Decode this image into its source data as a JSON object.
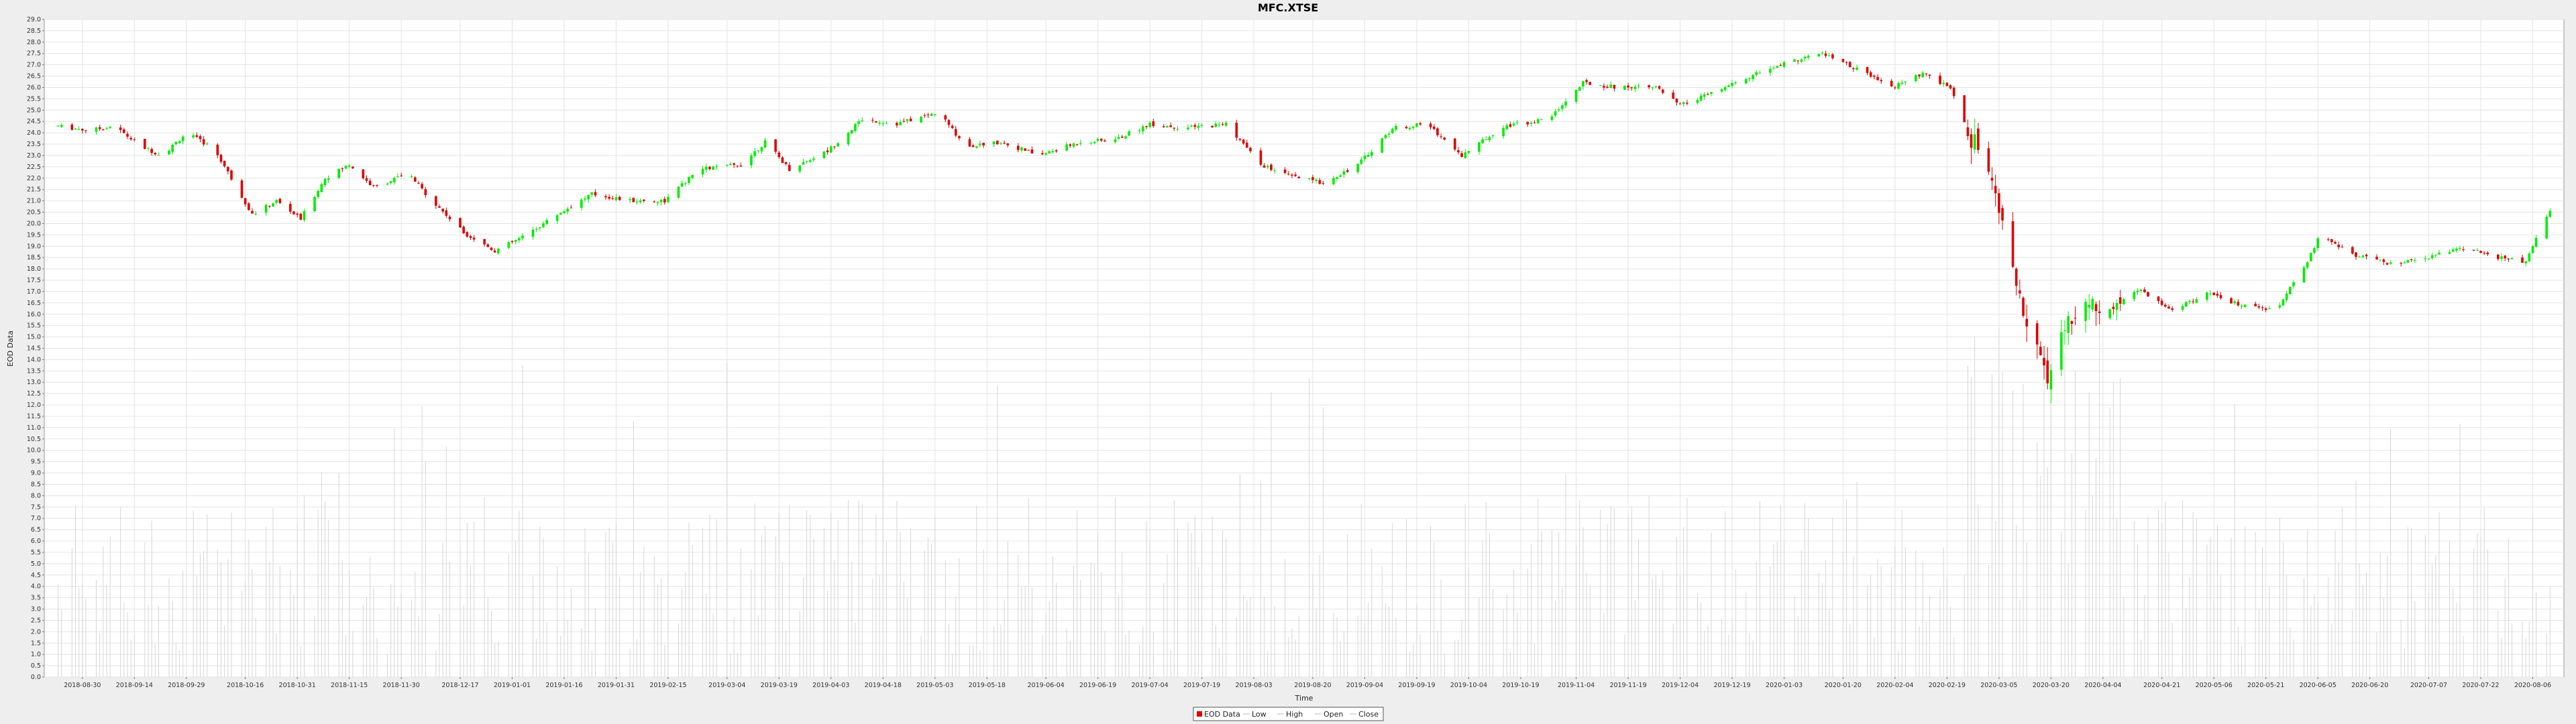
{
  "chart_data": {
    "type": "candlestick",
    "title": "MFC.XTSE",
    "xlabel": "Time",
    "ylabel": "EOD Data",
    "ylim": [
      0,
      29
    ],
    "ytick_step": 0.5,
    "grid": true,
    "legend_position": "bottom-center",
    "legend": [
      "EOD Data",
      "Low",
      "High",
      "Open",
      "Close"
    ],
    "colors": {
      "up": "#00ee00",
      "down": "#dd0000",
      "volume": "#d6d6d6",
      "grid": "#e4e4e4",
      "plot_bg": "#ffffff",
      "page_bg": "#eeeeee"
    },
    "x_tick_labels": [
      "2018-08-30",
      "2018-09-14",
      "2018-09-29",
      "2018-10-16",
      "2018-10-31",
      "2018-11-15",
      "2018-11-30",
      "2018-12-17",
      "2019-01-01",
      "2019-01-16",
      "2019-01-31",
      "2019-02-15",
      "2019-03-04",
      "2019-03-19",
      "2019-04-03",
      "2019-04-18",
      "2019-05-03",
      "2019-05-18",
      "2019-06-04",
      "2019-06-19",
      "2019-07-04",
      "2019-07-19",
      "2019-08-03",
      "2019-08-20",
      "2019-09-04",
      "2019-09-19",
      "2019-10-04",
      "2019-10-19",
      "2019-11-04",
      "2019-11-19",
      "2019-12-04",
      "2019-12-19",
      "2020-01-03",
      "2020-01-20",
      "2020-02-04",
      "2020-02-19",
      "2020-03-05",
      "2020-03-20",
      "2020-04-04",
      "2020-04-21",
      "2020-05-06",
      "2020-05-21",
      "2020-06-05",
      "2020-06-20",
      "2020-07-07",
      "2020-07-22",
      "2020-08-06"
    ],
    "anchors": [
      {
        "date": "2018-08-23",
        "close": 24.3
      },
      {
        "date": "2018-09-01",
        "close": 24.1
      },
      {
        "date": "2018-09-08",
        "close": 24.3
      },
      {
        "date": "2018-09-16",
        "close": 23.4
      },
      {
        "date": "2018-09-22",
        "close": 23.0
      },
      {
        "date": "2018-09-29",
        "close": 24.0
      },
      {
        "date": "2018-10-07",
        "close": 23.3
      },
      {
        "date": "2018-10-12",
        "close": 22.0
      },
      {
        "date": "2018-10-18",
        "close": 20.4
      },
      {
        "date": "2018-10-25",
        "close": 21.0
      },
      {
        "date": "2018-11-01",
        "close": 20.2
      },
      {
        "date": "2018-11-08",
        "close": 22.0
      },
      {
        "date": "2018-11-15",
        "close": 22.6
      },
      {
        "date": "2018-11-22",
        "close": 21.6
      },
      {
        "date": "2018-12-02",
        "close": 22.2
      },
      {
        "date": "2018-12-09",
        "close": 21.0
      },
      {
        "date": "2018-12-18",
        "close": 19.6
      },
      {
        "date": "2018-12-27",
        "close": 18.8
      },
      {
        "date": "2019-01-04",
        "close": 19.4
      },
      {
        "date": "2019-01-14",
        "close": 20.4
      },
      {
        "date": "2019-01-24",
        "close": 21.3
      },
      {
        "date": "2019-02-04",
        "close": 21.0
      },
      {
        "date": "2019-02-14",
        "close": 21.0
      },
      {
        "date": "2019-02-24",
        "close": 22.4
      },
      {
        "date": "2019-03-08",
        "close": 22.6
      },
      {
        "date": "2019-03-15",
        "close": 23.6
      },
      {
        "date": "2019-03-22",
        "close": 22.4
      },
      {
        "date": "2019-04-02",
        "close": 23.2
      },
      {
        "date": "2019-04-12",
        "close": 24.6
      },
      {
        "date": "2019-04-22",
        "close": 24.4
      },
      {
        "date": "2019-05-04",
        "close": 24.9
      },
      {
        "date": "2019-05-12",
        "close": 23.4
      },
      {
        "date": "2019-05-22",
        "close": 23.6
      },
      {
        "date": "2019-06-02",
        "close": 23.0
      },
      {
        "date": "2019-06-14",
        "close": 23.6
      },
      {
        "date": "2019-06-24",
        "close": 23.7
      },
      {
        "date": "2019-07-04",
        "close": 24.4
      },
      {
        "date": "2019-07-14",
        "close": 24.2
      },
      {
        "date": "2019-07-26",
        "close": 24.4
      },
      {
        "date": "2019-08-05",
        "close": 22.6
      },
      {
        "date": "2019-08-13",
        "close": 22.1
      },
      {
        "date": "2019-08-23",
        "close": 21.8
      },
      {
        "date": "2019-09-02",
        "close": 22.6
      },
      {
        "date": "2019-09-12",
        "close": 24.2
      },
      {
        "date": "2019-09-22",
        "close": 24.4
      },
      {
        "date": "2019-10-02",
        "close": 23.0
      },
      {
        "date": "2019-10-14",
        "close": 24.3
      },
      {
        "date": "2019-10-27",
        "close": 24.6
      },
      {
        "date": "2019-11-06",
        "close": 26.2
      },
      {
        "date": "2019-11-16",
        "close": 26.0
      },
      {
        "date": "2019-11-26",
        "close": 26.1
      },
      {
        "date": "2019-12-04",
        "close": 25.2
      },
      {
        "date": "2019-12-14",
        "close": 25.8
      },
      {
        "date": "2019-12-26",
        "close": 26.6
      },
      {
        "date": "2020-01-06",
        "close": 27.2
      },
      {
        "date": "2020-01-14",
        "close": 27.5
      },
      {
        "date": "2020-01-24",
        "close": 26.8
      },
      {
        "date": "2020-02-03",
        "close": 26.0
      },
      {
        "date": "2020-02-12",
        "close": 26.6
      },
      {
        "date": "2020-02-20",
        "close": 26.0
      },
      {
        "date": "2020-02-25",
        "close": 24.0
      },
      {
        "date": "2020-03-02",
        "close": 22.6
      },
      {
        "date": "2020-03-06",
        "close": 20.0
      },
      {
        "date": "2020-03-10",
        "close": 17.2
      },
      {
        "date": "2020-03-16",
        "close": 14.6
      },
      {
        "date": "2020-03-19",
        "close": 13.0
      },
      {
        "date": "2020-03-24",
        "close": 15.4
      },
      {
        "date": "2020-03-31",
        "close": 16.5
      },
      {
        "date": "2020-04-06",
        "close": 16.4
      },
      {
        "date": "2020-04-14",
        "close": 17.1
      },
      {
        "date": "2020-04-24",
        "close": 16.2
      },
      {
        "date": "2020-05-04",
        "close": 16.9
      },
      {
        "date": "2020-05-14",
        "close": 16.4
      },
      {
        "date": "2020-05-24",
        "close": 16.2
      },
      {
        "date": "2020-06-02",
        "close": 18.3
      },
      {
        "date": "2020-06-06",
        "close": 19.6
      },
      {
        "date": "2020-06-14",
        "close": 18.7
      },
      {
        "date": "2020-06-26",
        "close": 18.2
      },
      {
        "date": "2020-07-06",
        "close": 18.4
      },
      {
        "date": "2020-07-16",
        "close": 19.0
      },
      {
        "date": "2020-07-24",
        "close": 18.6
      },
      {
        "date": "2020-08-04",
        "close": 18.3
      },
      {
        "date": "2020-08-11",
        "close": 20.6
      }
    ],
    "volume_scale": "relative, same 0-29 axis"
  }
}
